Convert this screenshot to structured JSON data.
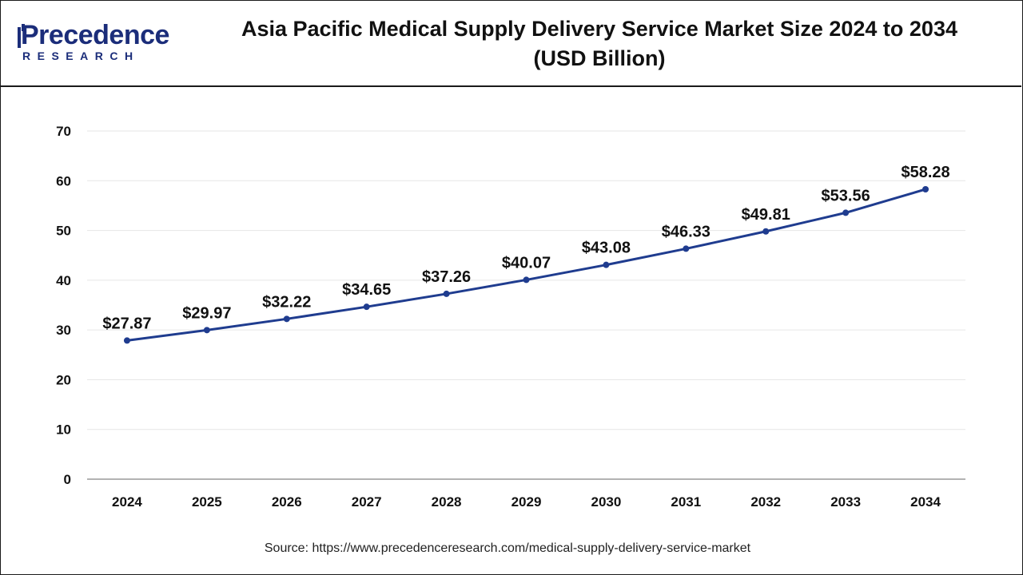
{
  "header": {
    "logo": {
      "word": "Precedence",
      "sub": "RESEARCH"
    },
    "title_line1": "Asia Pacific Medical Supply Delivery Service Market Size 2024 to 2034",
    "title_line2": "(USD Billion)"
  },
  "chart_data": {
    "type": "line",
    "title": "Asia Pacific Medical Supply Delivery Service Market Size 2024 to 2034 (USD Billion)",
    "xlabel": "",
    "ylabel": "",
    "categories": [
      "2024",
      "2025",
      "2026",
      "2027",
      "2028",
      "2029",
      "2030",
      "2031",
      "2032",
      "2033",
      "2034"
    ],
    "series": [
      {
        "values": [
          27.87,
          29.97,
          32.22,
          34.65,
          37.26,
          40.07,
          43.08,
          46.33,
          49.81,
          53.56,
          58.28
        ],
        "labels": [
          "$27.87",
          "$29.97",
          "$32.22",
          "$34.65",
          "$37.26",
          "$40.07",
          "$43.08",
          "$46.33",
          "$49.81",
          "$53.56",
          "$58.28"
        ]
      }
    ],
    "ylim": [
      0,
      70
    ],
    "yticks": [
      0,
      10,
      20,
      30,
      40,
      50,
      60,
      70
    ],
    "grid": true,
    "line_color": "#1f3c8f",
    "grid_color": "#e6e6e6"
  },
  "footer": {
    "source": "Source: https://www.precedenceresearch.com/medical-supply-delivery-service-market"
  }
}
